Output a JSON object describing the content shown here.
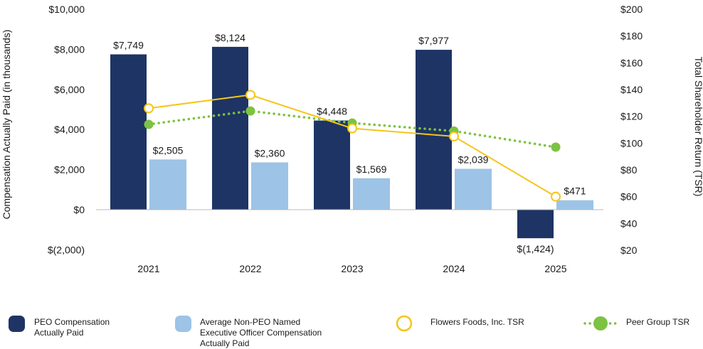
{
  "chart_data": {
    "type": "bar",
    "categories": [
      "2021",
      "2022",
      "2023",
      "2024",
      "2025"
    ],
    "series": [
      {
        "name": "PEO Compensation Actually Paid",
        "axis": "left",
        "kind": "bar",
        "color": "#1e3464",
        "values": [
          7749,
          8124,
          4448,
          7977,
          -1424
        ],
        "labels": [
          "$7,749",
          "$8,124",
          "$4,448",
          "$7,977",
          "$(1,424)"
        ]
      },
      {
        "name": "Average Non-PEO Named Executive Officer Compensation Actually Paid",
        "axis": "left",
        "kind": "bar",
        "color": "#9dc3e6",
        "values": [
          2505,
          2360,
          1569,
          2039,
          471
        ],
        "labels": [
          "$2,505",
          "$2,360",
          "$1,569",
          "$2,039",
          "$471"
        ]
      },
      {
        "name": "Flowers Foods, Inc. TSR",
        "axis": "right",
        "kind": "line",
        "color": "#f5c518",
        "values": [
          126,
          136,
          111,
          105,
          60
        ]
      },
      {
        "name": "Peer Group TSR",
        "axis": "right",
        "kind": "dotted-line",
        "color": "#7dc242",
        "values": [
          114,
          124,
          115,
          109,
          97
        ]
      }
    ],
    "ylabel": "Compensation Actually Paid (in thousands)",
    "y2label": "Total Shareholder Return (TSR)",
    "ylim": [
      -2000,
      10000
    ],
    "y2lim": [
      20,
      200
    ],
    "yticks": [
      {
        "v": 10000,
        "t": "$10,000"
      },
      {
        "v": 8000,
        "t": "$8,000"
      },
      {
        "v": 6000,
        "t": "$6,000"
      },
      {
        "v": 4000,
        "t": "$4,000"
      },
      {
        "v": 2000,
        "t": "$2,000"
      },
      {
        "v": 0,
        "t": "$0"
      },
      {
        "v": -2000,
        "t": "$(2,000)"
      }
    ],
    "y2ticks": [
      {
        "v": 200,
        "t": "$200"
      },
      {
        "v": 180,
        "t": "$180"
      },
      {
        "v": 160,
        "t": "$160"
      },
      {
        "v": 140,
        "t": "$140"
      },
      {
        "v": 120,
        "t": "$120"
      },
      {
        "v": 100,
        "t": "$100"
      },
      {
        "v": 80,
        "t": "$80"
      },
      {
        "v": 60,
        "t": "$60"
      },
      {
        "v": 40,
        "t": "$40"
      },
      {
        "v": 20,
        "t": "$20"
      }
    ],
    "legend": [
      {
        "text": [
          "PEO Compensation",
          "Actually Paid"
        ],
        "marker": "square",
        "color": "#1e3464"
      },
      {
        "text": [
          "Average Non-PEO Named",
          "Executive Officer Compensation",
          "Actually Paid"
        ],
        "marker": "square",
        "color": "#9dc3e6"
      },
      {
        "text": [
          "Flowers Foods, Inc. TSR"
        ],
        "marker": "hollow-circle",
        "color": "#f5c518"
      },
      {
        "text": [
          "Peer Group TSR"
        ],
        "marker": "dotted-circle",
        "color": "#7dc242"
      }
    ]
  }
}
